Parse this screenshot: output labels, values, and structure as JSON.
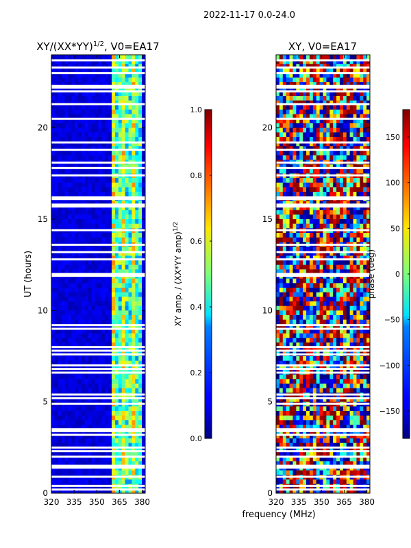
{
  "suptitle": "2022-11-17 0.0-24.0",
  "chart_data": [
    {
      "type": "heatmap",
      "title": "XY/(XX*YY)",
      "title_exp": "1/2",
      "title_suffix": ", V0=EA17",
      "xlabel": "",
      "ylabel": "UT (hours)",
      "xlim": [
        320,
        382
      ],
      "ylim": [
        0,
        24
      ],
      "xticks": [
        "320",
        "335",
        "350",
        "365",
        "380"
      ],
      "xtick_values": [
        320,
        335,
        350,
        365,
        380
      ],
      "yticks": [
        "0",
        "5",
        "10",
        "15",
        "20"
      ],
      "ytick_values": [
        0,
        5,
        10,
        15,
        20
      ],
      "colorscale": "jet",
      "colorbar": {
        "label": "XY amp. / (XX*YY amp)",
        "label_exp": "1/2",
        "range": [
          0,
          1
        ],
        "ticks": [
          "0.0",
          "0.2",
          "0.4",
          "0.6",
          "0.8",
          "1.0"
        ],
        "tick_values": [
          0,
          0.2,
          0.4,
          0.6,
          0.8,
          1.0
        ]
      },
      "bright_band_mhz": [
        360,
        380
      ],
      "gaps_hours": [
        0.2,
        0.4,
        0.9,
        1.4,
        1.5,
        2.0,
        2.3,
        2.5,
        3.2,
        3.4,
        3.5,
        4.9,
        5.2,
        5.4,
        6.6,
        6.8,
        7.0,
        7.6,
        7.8,
        8.0,
        9.0,
        9.2,
        11.9,
        12.0,
        12.8,
        13.2,
        13.6,
        14.4,
        15.7,
        15.8,
        16.1,
        16.2,
        17.4,
        17.8,
        18.1,
        18.8,
        19.2,
        20.5,
        21.3,
        22.0,
        22.2,
        22.3,
        23.0,
        23.3,
        23.7
      ]
    },
    {
      "type": "heatmap",
      "title": "XY, V0=EA17",
      "xlabel": "frequency (MHz)",
      "ylabel": "",
      "xlim": [
        320,
        382
      ],
      "ylim": [
        0,
        24
      ],
      "xticks": [
        "320",
        "335",
        "350",
        "365",
        "380"
      ],
      "xtick_values": [
        320,
        335,
        350,
        365,
        380
      ],
      "yticks": [
        "0",
        "5",
        "10",
        "15",
        "20"
      ],
      "ytick_values": [
        0,
        5,
        10,
        15,
        20
      ],
      "colorscale": "jet",
      "colorbar": {
        "label": "phase (deg)",
        "range": [
          -180,
          180
        ],
        "ticks": [
          "−150",
          "−100",
          "−50",
          "0",
          "50",
          "100",
          "150"
        ],
        "tick_values": [
          -150,
          -100,
          -50,
          0,
          50,
          100,
          150
        ]
      },
      "gaps_hours": [
        0.2,
        0.4,
        0.9,
        1.4,
        1.5,
        2.0,
        2.3,
        2.5,
        3.2,
        3.4,
        3.5,
        4.9,
        5.2,
        5.4,
        6.6,
        6.8,
        7.0,
        7.6,
        7.8,
        8.0,
        9.0,
        9.2,
        11.9,
        12.0,
        12.8,
        13.2,
        13.6,
        14.4,
        15.7,
        15.8,
        16.1,
        16.2,
        17.4,
        17.8,
        18.1,
        18.8,
        19.2,
        20.5,
        21.3,
        22.0,
        22.2,
        22.3,
        23.0,
        23.3,
        23.7
      ]
    }
  ]
}
